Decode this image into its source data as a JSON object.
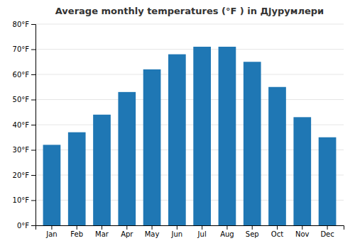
{
  "chart_data": {
    "type": "bar",
    "title": "Average monthly temperatures (°F ) in Дјурумлери",
    "categories": [
      "Jan",
      "Feb",
      "Mar",
      "Apr",
      "May",
      "Jun",
      "Jul",
      "Aug",
      "Sep",
      "Oct",
      "Nov",
      "Dec"
    ],
    "values": [
      32,
      37,
      44,
      53,
      62,
      68,
      71,
      71,
      65,
      55,
      43,
      35
    ],
    "ylim": [
      0,
      80
    ],
    "yticks": [
      {
        "value": 0,
        "label": "0°F"
      },
      {
        "value": 10,
        "label": "10°F"
      },
      {
        "value": 20,
        "label": "20°F"
      },
      {
        "value": 30,
        "label": "30°F"
      },
      {
        "value": 40,
        "label": "40°F"
      },
      {
        "value": 50,
        "label": "50°F"
      },
      {
        "value": 60,
        "label": "60°F"
      },
      {
        "value": 70,
        "label": "70°F"
      },
      {
        "value": 80,
        "label": "80°F"
      }
    ],
    "grid": true
  }
}
